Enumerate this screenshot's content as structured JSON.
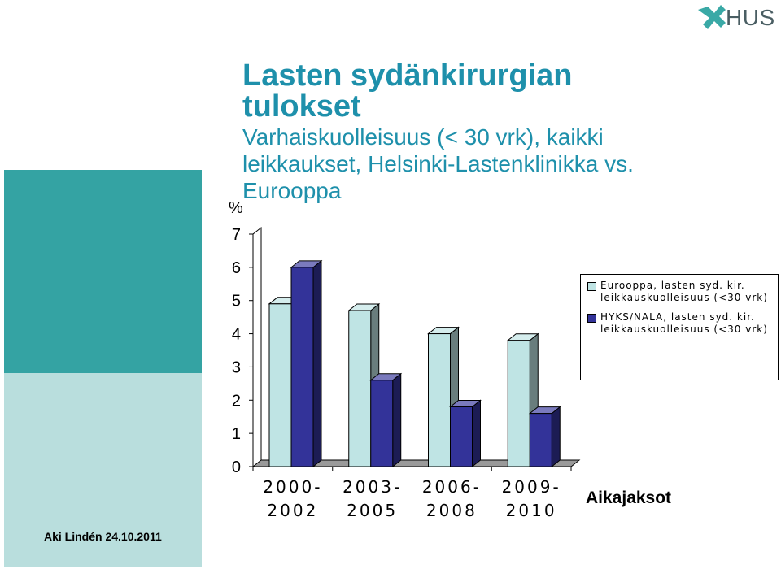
{
  "logo": {
    "text": "HUS",
    "icon": "hus-cross-logo"
  },
  "slide": {
    "title": "Lasten sydänkirurgian tulokset",
    "subtitle": "Varhaiskuolleisuus (< 30 vrk), kaikki leikkaukset, Helsinki-Lastenklinikka vs. Eurooppa",
    "author": "Aki Lindén 24.10.2011"
  },
  "colors": {
    "accent": "#1e90ab",
    "deco_teal": "#34a3a3",
    "deco_light": "#b9dedd"
  },
  "chart_data": {
    "type": "bar",
    "categories": [
      [
        "2000-",
        "2002"
      ],
      [
        "2003-",
        "2005"
      ],
      [
        "2006-",
        "2008"
      ],
      [
        "2009-",
        "2010"
      ]
    ],
    "series": [
      {
        "name": "Eurooppa, lasten syd. kir. leikkauskuolleisuus (<30 vrk)",
        "values": [
          4.9,
          4.7,
          4.0,
          3.8
        ],
        "color": "#bfe4e4"
      },
      {
        "name": "HYKS/NALA, lasten syd. kir. leikkauskuolleisuus (<30 vrk)",
        "values": [
          6.0,
          2.6,
          1.8,
          1.6
        ],
        "color": "#333399"
      }
    ],
    "ylabel": "%",
    "xlabel": "Aikajaksot",
    "ylim": [
      0,
      7
    ],
    "yticks": [
      "0",
      "1",
      "2",
      "3",
      "4",
      "5",
      "6",
      "7"
    ],
    "grid": false,
    "legend": "right"
  }
}
